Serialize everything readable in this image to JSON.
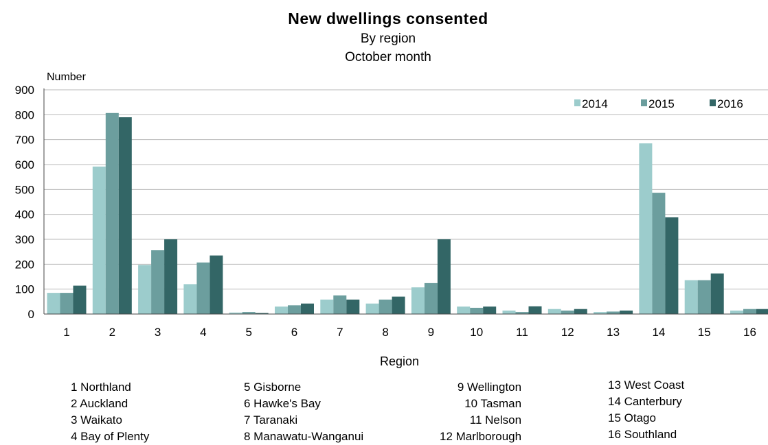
{
  "title": "New dwellings consented",
  "subtitle": "By region",
  "subtitle2": "October month",
  "chart_data": {
    "type": "bar",
    "title": "New dwellings consented",
    "subtitle": [
      "By region",
      "October month"
    ],
    "xlabel": "Region",
    "ylabel": "Number",
    "ylim": [
      0,
      900
    ],
    "yticks": [
      0,
      100,
      200,
      300,
      400,
      500,
      600,
      700,
      800,
      900
    ],
    "grid": true,
    "legend_position": "top-right",
    "categories": [
      "1",
      "2",
      "3",
      "4",
      "5",
      "6",
      "7",
      "8",
      "9",
      "10",
      "11",
      "12",
      "13",
      "14",
      "15",
      "16"
    ],
    "series": [
      {
        "name": "2014",
        "color": "#9ccccc",
        "values": [
          85,
          592,
          197,
          120,
          6,
          30,
          58,
          42,
          107,
          30,
          14,
          20,
          8,
          685,
          136,
          14
        ]
      },
      {
        "name": "2015",
        "color": "#6c9e9e",
        "values": [
          85,
          807,
          256,
          207,
          8,
          35,
          75,
          58,
          124,
          25,
          8,
          14,
          10,
          487,
          136,
          20
        ]
      },
      {
        "name": "2016",
        "color": "#336666",
        "values": [
          114,
          790,
          300,
          235,
          4,
          42,
          58,
          70,
          300,
          30,
          31,
          20,
          14,
          388,
          163,
          20
        ]
      }
    ]
  },
  "region_key": [
    [
      "1 Northland",
      "2 Auckland",
      "3 Waikato",
      "4 Bay of Plenty"
    ],
    [
      "5 Gisborne",
      "6 Hawke's Bay",
      "7 Taranaki",
      "8 Manawatu-Wanganui"
    ],
    [
      "9 Wellington",
      "10 Tasman",
      "11 Nelson",
      "12 Marlborough"
    ],
    [
      "13 West Coast",
      "14 Canterbury",
      "15 Otago",
      "16 Southland"
    ]
  ]
}
